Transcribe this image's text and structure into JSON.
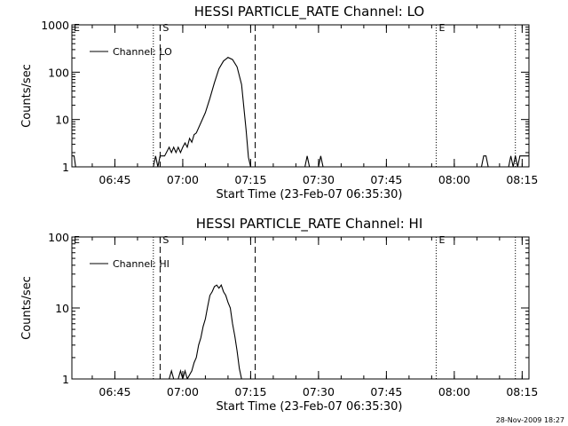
{
  "footer": "28-Nov-2009 18:27",
  "chart_data": [
    {
      "type": "line",
      "title": "HESSI PARTICLE_RATE Channel: LO",
      "xlabel": "Start Time (23-Feb-07 06:35:30)",
      "ylabel": "Counts/sec",
      "yscale": "log",
      "ylim": [
        1,
        1000
      ],
      "yticks": [
        1,
        10,
        100,
        1000
      ],
      "ytick_labels": [
        "1",
        "10",
        "100",
        "1000"
      ],
      "xlim": [
        "06:35:30",
        "08:16:30"
      ],
      "xtick_values": [
        "06:45",
        "07:00",
        "07:15",
        "07:30",
        "07:45",
        "08:00",
        "08:15"
      ],
      "xtick_labels": [
        "06:45",
        "07:00",
        "07:15",
        "07:30",
        "07:45",
        "08:00",
        "08:15"
      ],
      "legend": {
        "placement": "top-left",
        "entries": [
          "Channel: LO"
        ]
      },
      "series": [
        {
          "name": "Channel: LO",
          "points": [
            [
              "06:35:30",
              1.7
            ],
            [
              "06:36:00",
              1.7
            ],
            [
              "06:36:20",
              1.0
            ],
            [
              "06:37:00",
              1.0
            ],
            [
              "06:53:30",
              1.0
            ],
            [
              "06:54:00",
              1.7
            ],
            [
              "06:54:30",
              1.0
            ],
            [
              "06:55:00",
              1.7
            ],
            [
              "06:56:00",
              1.7
            ],
            [
              "06:57:00",
              2.6
            ],
            [
              "06:57:30",
              2.0
            ],
            [
              "06:58:00",
              2.6
            ],
            [
              "06:58:30",
              2.0
            ],
            [
              "06:59:00",
              2.6
            ],
            [
              "06:59:30",
              2.0
            ],
            [
              "07:00:00",
              2.6
            ],
            [
              "07:00:30",
              3.2
            ],
            [
              "07:01:00",
              2.6
            ],
            [
              "07:01:30",
              4.0
            ],
            [
              "07:02:00",
              3.3
            ],
            [
              "07:02:30",
              4.8
            ],
            [
              "07:03:00",
              5.2
            ],
            [
              "07:04:00",
              8.5
            ],
            [
              "07:05:00",
              14
            ],
            [
              "07:06:00",
              28
            ],
            [
              "07:07:00",
              60
            ],
            [
              "07:08:00",
              118
            ],
            [
              "07:09:00",
              172
            ],
            [
              "07:10:00",
              205
            ],
            [
              "07:11:00",
              185
            ],
            [
              "07:12:00",
              130
            ],
            [
              "07:13:00",
              55
            ],
            [
              "07:14:00",
              6
            ],
            [
              "07:14:30",
              1.6
            ],
            [
              "07:15:00",
              1.0
            ],
            [
              "07:27:00",
              1.0
            ],
            [
              "07:27:30",
              1.7
            ],
            [
              "07:28:00",
              1.0
            ],
            [
              "07:30:00",
              1.0
            ],
            [
              "07:30:30",
              1.7
            ],
            [
              "07:31:00",
              1.0
            ],
            [
              "08:06:00",
              1.0
            ],
            [
              "08:06:30",
              1.7
            ],
            [
              "08:07:00",
              1.7
            ],
            [
              "08:07:30",
              1.0
            ],
            [
              "08:12:00",
              1.0
            ],
            [
              "08:12:30",
              1.7
            ],
            [
              "08:13:00",
              1.0
            ],
            [
              "08:13:30",
              1.7
            ],
            [
              "08:14:00",
              1.0
            ],
            [
              "08:14:30",
              1.7
            ],
            [
              "08:16:30",
              1.7
            ]
          ]
        }
      ],
      "vlines": [
        {
          "x": "06:53:30",
          "style": "dotted",
          "label": ""
        },
        {
          "x": "06:55:00",
          "style": "dashed",
          "label": "S"
        },
        {
          "x": "07:16:00",
          "style": "dashed",
          "label": ""
        },
        {
          "x": "07:56:00",
          "style": "dotted",
          "label": "E"
        },
        {
          "x": "08:13:30",
          "style": "dotted",
          "label": ""
        }
      ],
      "edge_label": "E"
    },
    {
      "type": "line",
      "title": "HESSI PARTICLE_RATE Channel: HI",
      "xlabel": "Start Time (23-Feb-07 06:35:30)",
      "ylabel": "Counts/sec",
      "yscale": "log",
      "ylim": [
        1,
        100
      ],
      "yticks": [
        1,
        10,
        100
      ],
      "ytick_labels": [
        "1",
        "10",
        "100"
      ],
      "xlim": [
        "06:35:30",
        "08:16:30"
      ],
      "xtick_values": [
        "06:45",
        "07:00",
        "07:15",
        "07:30",
        "07:45",
        "08:00",
        "08:15"
      ],
      "xtick_labels": [
        "06:45",
        "07:00",
        "07:15",
        "07:30",
        "07:45",
        "08:00",
        "08:15"
      ],
      "legend": {
        "placement": "top-left",
        "entries": [
          "Channel: HI"
        ]
      },
      "series": [
        {
          "name": "Channel: HI",
          "points": [
            [
              "06:55:30",
              1.0
            ],
            [
              "06:56:30",
              1.0
            ],
            [
              "06:57:00",
              1.0
            ],
            [
              "06:57:30",
              1.3
            ],
            [
              "06:58:00",
              1.0
            ],
            [
              "06:59:00",
              1.0
            ],
            [
              "06:59:30",
              1.3
            ],
            [
              "07:00:00",
              1.0
            ],
            [
              "07:00:30",
              1.3
            ],
            [
              "07:01:00",
              1.0
            ],
            [
              "07:02:00",
              1.3
            ],
            [
              "07:02:30",
              1.7
            ],
            [
              "07:03:00",
              2.0
            ],
            [
              "07:03:30",
              3.0
            ],
            [
              "07:04:00",
              3.8
            ],
            [
              "07:04:30",
              5.5
            ],
            [
              "07:05:00",
              7
            ],
            [
              "07:05:30",
              10.5
            ],
            [
              "07:06:00",
              15
            ],
            [
              "07:06:30",
              17
            ],
            [
              "07:07:00",
              20
            ],
            [
              "07:07:30",
              21
            ],
            [
              "07:08:00",
              19
            ],
            [
              "07:08:30",
              21
            ],
            [
              "07:09:00",
              17
            ],
            [
              "07:09:30",
              15
            ],
            [
              "07:10:00",
              12
            ],
            [
              "07:10:30",
              10
            ],
            [
              "07:11:00",
              6
            ],
            [
              "07:11:30",
              4
            ],
            [
              "07:12:00",
              2.5
            ],
            [
              "07:12:30",
              1.4
            ],
            [
              "07:13:00",
              1.0
            ]
          ]
        }
      ],
      "vlines": [
        {
          "x": "06:53:30",
          "style": "dotted",
          "label": ""
        },
        {
          "x": "06:55:00",
          "style": "dashed",
          "label": "S"
        },
        {
          "x": "07:16:00",
          "style": "dashed",
          "label": ""
        },
        {
          "x": "07:56:00",
          "style": "dotted",
          "label": "E"
        },
        {
          "x": "08:13:30",
          "style": "dotted",
          "label": ""
        }
      ],
      "edge_label": "E"
    }
  ]
}
